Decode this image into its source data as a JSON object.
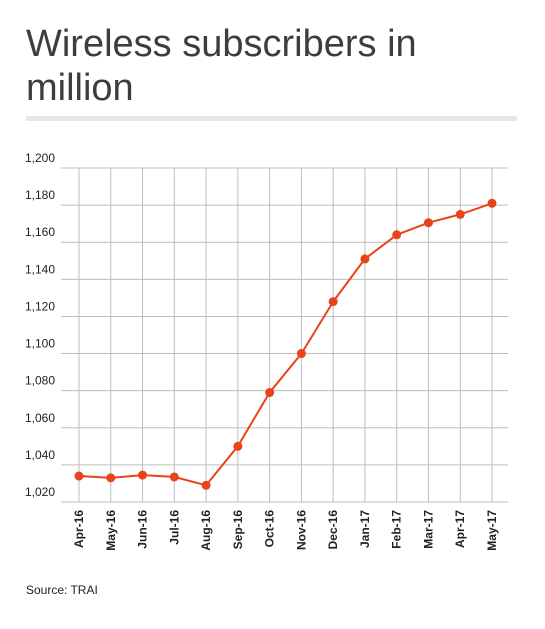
{
  "title": "Wireless subscribers in million",
  "source": "Source: TRAI",
  "colors": {
    "line": "#e8431a",
    "grid": "#bdbdbd",
    "text": "#222222",
    "title": "#3d3d3d"
  },
  "chart_data": {
    "type": "line",
    "categories": [
      "Apr-16",
      "May-16",
      "Jun-16",
      "Jul-16",
      "Aug-16",
      "Sep-16",
      "Oct-16",
      "Nov-16",
      "Dec-16",
      "Jan-17",
      "Feb-17",
      "Mar-17",
      "Apr-17",
      "May-17"
    ],
    "series": [
      {
        "values": [
          1034,
          1033,
          1034.5,
          1033.5,
          1029,
          1050,
          1079,
          1100,
          1128,
          1151,
          1164,
          1170.5,
          1175,
          1181
        ]
      }
    ],
    "yticks": [
      "1,200",
      "1,180",
      "1,160",
      "1,140",
      "1,120",
      "1,100",
      "1,080",
      "1,060",
      "1,040",
      "1,020"
    ],
    "ylim": [
      1020,
      1200
    ],
    "grid": true,
    "legend": "none"
  }
}
